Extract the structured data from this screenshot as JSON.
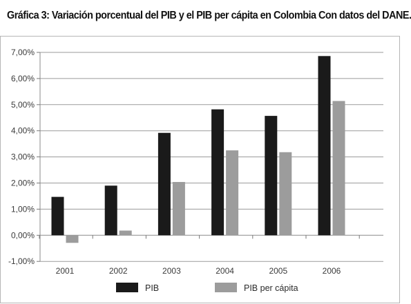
{
  "title": "Gráfica 3: Variación porcentual del PIB y el PIB per cápita en Colombia Con datos del DANE.",
  "chart_data": {
    "type": "bar",
    "categories": [
      "2001",
      "2002",
      "2003",
      "2004",
      "2005",
      "2006"
    ],
    "series": [
      {
        "name": "PIB",
        "values": [
          1.47,
          1.9,
          3.92,
          4.82,
          4.57,
          6.86
        ],
        "color": "#1a1a1a"
      },
      {
        "name": "PIB per cápita",
        "values": [
          -0.29,
          0.18,
          2.04,
          3.25,
          3.18,
          5.14
        ],
        "color": "#9c9c9c"
      }
    ],
    "y_ticks": [
      7,
      6,
      5,
      4,
      3,
      2,
      1,
      0,
      -1
    ],
    "y_tick_labels": [
      "7,00%",
      "6,00%",
      "5,00%",
      "4,00%",
      "3,00%",
      "2,00%",
      "1,00%",
      "0,00%",
      "-1,00%"
    ],
    "ylim": [
      -1,
      7
    ],
    "grid": true,
    "legend_position": "bottom",
    "title": "Gráfica 3: Variación porcentual del PIB y el PIB per cápita en Colombia Con datos del DANE.",
    "xlabel": "",
    "ylabel": ""
  }
}
